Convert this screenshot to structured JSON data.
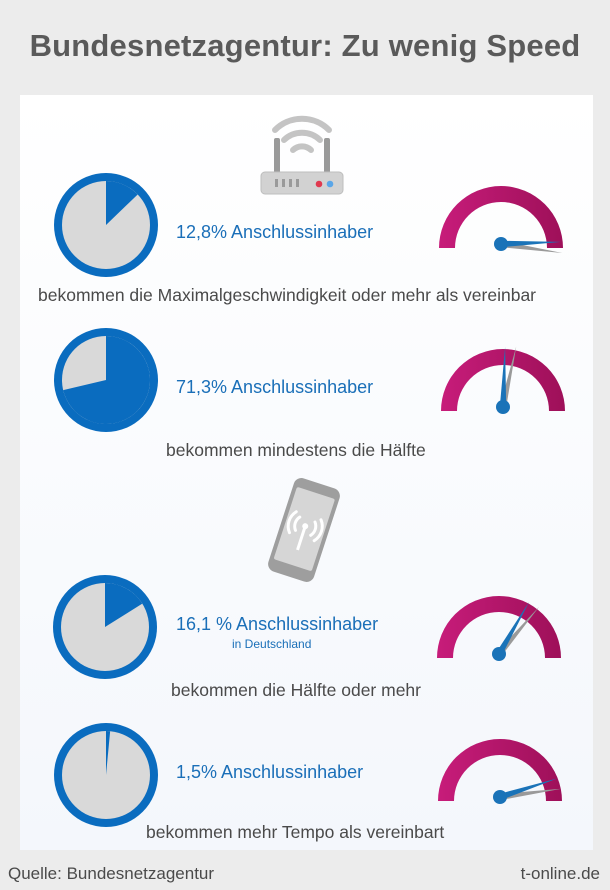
{
  "title": "Bundesnetzagentur: Zu wenig Speed",
  "source": "Quelle: Bundesnetzagentur",
  "brand": "t-online.de",
  "colors": {
    "pie_fill": "#0a6cbf",
    "pie_empty": "#d9d9d9",
    "gauge_start": "#c71c7a",
    "gauge_end": "#9e1059",
    "needle": "#1a73b8",
    "needle_shadow": "#9a9a9a"
  },
  "sections": [
    {
      "icon": "router-icon"
    },
    {
      "icon": "smartphone-icon"
    }
  ],
  "chart_data": {
    "type": "pie",
    "unit": "%",
    "series": [
      {
        "value": 12.8,
        "label": "12,8% Anschlussinhaber",
        "subtitle": "",
        "caption": "bekommen die Maximalgeschwindigkeit oder mehr als vereinbar",
        "section": "router-icon"
      },
      {
        "value": 71.3,
        "label": "71,3% Anschlussinhaber",
        "subtitle": "",
        "caption": "bekommen mindestens die Hälfte",
        "section": "router-icon"
      },
      {
        "value": 16.1,
        "label": "16,1 % Anschlussinhaber",
        "subtitle": "in Deutschland",
        "caption": "bekommen die Hälfte oder mehr",
        "section": "smartphone-icon"
      },
      {
        "value": 1.5,
        "label": "1,5% Anschlussinhaber",
        "subtitle": "",
        "caption": "bekommen mehr Tempo als vereinbart",
        "section": "smartphone-icon"
      }
    ]
  }
}
